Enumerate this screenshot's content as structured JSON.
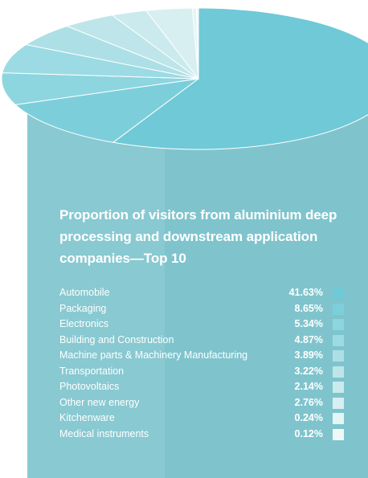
{
  "chart_data": {
    "type": "pie",
    "title": "Proportion of visitors from aluminium deep processing and downstream application companies—Top 10",
    "slices": [
      {
        "label": "Automobile",
        "value": 41.63,
        "display": "41.63%",
        "color": "#6fc9d6"
      },
      {
        "label": "Packaging",
        "value": 8.65,
        "display": "8.65%",
        "color": "#7ccfda"
      },
      {
        "label": "Electronics",
        "value": 5.34,
        "display": "5.34%",
        "color": "#8dd5df"
      },
      {
        "label": "Building and Construction",
        "value": 4.87,
        "display": "4.87%",
        "color": "#9cdbe3"
      },
      {
        "label": "Machine parts & Machinery Manufacturing",
        "value": 3.89,
        "display": "3.89%",
        "color": "#addfe6"
      },
      {
        "label": "Transportation",
        "value": 3.22,
        "display": "3.22%",
        "color": "#bee5ea"
      },
      {
        "label": "Photovoltaics",
        "value": 2.14,
        "display": "2.14%",
        "color": "#cbeaee"
      },
      {
        "label": "Other new energy",
        "value": 2.76,
        "display": "2.76%",
        "color": "#d8eff2"
      },
      {
        "label": "Kitchenware",
        "value": 0.24,
        "display": "0.24%",
        "color": "#e5f4f5"
      },
      {
        "label": "Medical instruments",
        "value": 0.12,
        "display": "0.12%",
        "color": "#f0f8f7"
      }
    ]
  },
  "colors": {
    "cylinder_body": "#7fc4cd",
    "cylinder_shadow": "#89c9d1",
    "text": "#ffffff"
  }
}
